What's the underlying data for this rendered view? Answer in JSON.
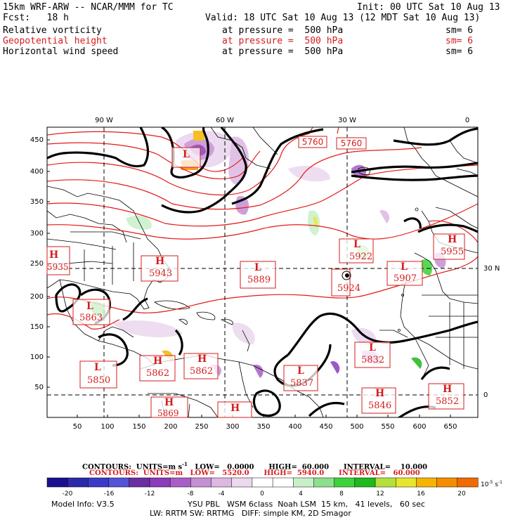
{
  "header": {
    "model_title": "15km WRF-ARW -- NCAR/MMM for TC",
    "init": "Init: 00 UTC Sat 10 Aug 13",
    "fcst": "Fcst:   18 h",
    "valid": "Valid: 18 UTC Sat 10 Aug 13 (12 MDT Sat 10 Aug 13)",
    "fields": [
      {
        "name": "Relative vorticity",
        "level": "at pressure =  500 hPa",
        "sm": "sm= 6",
        "color": "#000000"
      },
      {
        "name": "Geopotential height",
        "level": "at pressure =  500 hPa",
        "sm": "sm= 6",
        "color": "#d61c1c"
      },
      {
        "name": "Horizontal wind speed",
        "level": "at pressure =  500 hPa",
        "sm": "sm= 6",
        "color": "#000000"
      }
    ]
  },
  "map": {
    "lon_labels": [
      "90 W",
      "60 W",
      "30 W",
      "0"
    ],
    "lat_labels": [
      "30 N",
      "0"
    ],
    "x_ticks": [
      "50",
      "100",
      "150",
      "200",
      "250",
      "300",
      "350",
      "400",
      "450",
      "500",
      "550",
      "600",
      "650"
    ],
    "y_ticks": [
      "50",
      "100",
      "150",
      "200",
      "250",
      "300",
      "350",
      "400",
      "450"
    ],
    "contour_labels": [
      "5760",
      "5760"
    ],
    "pressure_centers": [
      {
        "type": "H",
        "value": "5935"
      },
      {
        "type": "H",
        "value": "5943"
      },
      {
        "type": "L",
        "value": "5889"
      },
      {
        "type": "L",
        "value": "5924"
      },
      {
        "type": "L",
        "value": "5922"
      },
      {
        "type": "L",
        "value": "5907"
      },
      {
        "type": "H",
        "value": "5955"
      },
      {
        "type": "L",
        "value": "5863"
      },
      {
        "type": "L",
        "value": "5850"
      },
      {
        "type": "H",
        "value": "5862"
      },
      {
        "type": "H",
        "value": "5862"
      },
      {
        "type": "L",
        "value": "5837"
      },
      {
        "type": "L",
        "value": "5832"
      },
      {
        "type": "H",
        "value": "5846"
      },
      {
        "type": "H",
        "value": "5852"
      },
      {
        "type": "H",
        "value": "5869"
      },
      {
        "type": "H",
        "value": ""
      },
      {
        "type": "L",
        "value": ""
      }
    ]
  },
  "footer": {
    "contours_black": "CONTOURS:  UNITS=m s",
    "contours_black_sup": "-1",
    "contours_black_rest": "   LOW=   0.0000      HIGH=  60.000      INTERVAL=    10.000",
    "contours_red": "CONTOURS:  UNITS=m   LOW=   5520.0      HIGH=  5940.0      INTERVAL=   60.000",
    "colorbar_labels": [
      "-20",
      "-16",
      "-12",
      "-8",
      "-4",
      "0",
      "4",
      "8",
      "12",
      "16",
      "20"
    ],
    "colorbar_units": "10",
    "colorbar_units_exp": "-5",
    "colorbar_units_rest": " s",
    "colorbar_units_exp2": "-1",
    "colorbar_colors": [
      "#1a0f8f",
      "#2a2aa8",
      "#3b3bc9",
      "#5353d6",
      "#6a2fa0",
      "#8c3cb8",
      "#a95ec7",
      "#c58fd4",
      "#dcb8e3",
      "#ecd8ef",
      "#ffffff",
      "#ffffff",
      "#c8f0c8",
      "#8be08b",
      "#3cd23c",
      "#1fb81f",
      "#b4e03c",
      "#e6e62d",
      "#f5b400",
      "#f58c00",
      "#f06a00"
    ],
    "model_info": "Model Info: V3.5",
    "physics1": "YSU PBL   WSM 6class  Noah LSM  15 km,   41 levels,   60 sec",
    "physics2": "LW: RRTM SW: RRTMG   DIFF: simple KM, 2D Smagor"
  },
  "colors": {
    "height_contour": "#e41a1a",
    "wind_contour": "#000000",
    "map_lines": "#000000",
    "label": "#d61c1c"
  }
}
